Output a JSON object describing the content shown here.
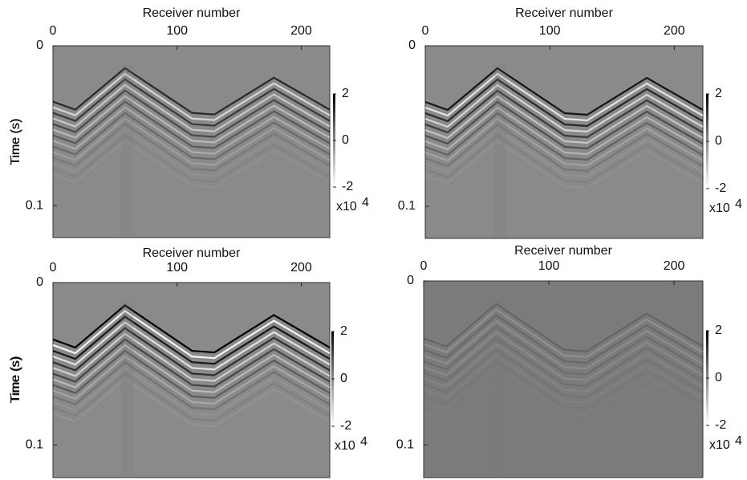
{
  "chart_data": [
    {
      "type": "image",
      "xlabel": "Receiver number",
      "ylabel": "Time (s)",
      "xlim": [
        0,
        223
      ],
      "xticks": [
        0,
        100,
        200
      ],
      "ylim": [
        0,
        0.12
      ],
      "yticks": [
        0,
        0.1
      ],
      "background": "#8a8a8a",
      "colorbar": {
        "clim": [
          -2,
          2
        ],
        "ticks": [
          2,
          0,
          -2
        ],
        "multiplier": "x10",
        "exponent": "4"
      }
    },
    {
      "type": "image",
      "xlabel": "Receiver number",
      "ylabel": "Time (s)",
      "xlim": [
        0,
        223
      ],
      "xticks": [
        0,
        100,
        200
      ],
      "ylim": [
        0,
        0.12
      ],
      "yticks": [
        0,
        0.1
      ],
      "background": "#8a8a8a",
      "colorbar": {
        "clim": [
          -2,
          2
        ],
        "ticks": [
          2,
          0,
          -2
        ],
        "multiplier": "x10",
        "exponent": "4"
      }
    },
    {
      "type": "image",
      "xlabel": "Receiver number",
      "ylabel": "Time (s)",
      "xlim": [
        0,
        223
      ],
      "xticks": [
        0,
        100,
        200
      ],
      "ylim": [
        0,
        0.12
      ],
      "yticks": [
        0,
        0.1
      ],
      "background": "#8a8a8a",
      "colorbar": {
        "clim": [
          -2,
          2
        ],
        "ticks": [
          2,
          0,
          -2
        ],
        "multiplier": "x10",
        "exponent": "4"
      }
    },
    {
      "type": "image",
      "xlabel": "Receiver number",
      "ylabel": "Time (s)",
      "xlim": [
        0,
        223
      ],
      "xticks": [
        0,
        100,
        200
      ],
      "ylim": [
        0,
        0.12
      ],
      "yticks": [
        0,
        0.1
      ],
      "background": "#7b7b7b",
      "colorbar": {
        "clim": [
          -2,
          2
        ],
        "ticks": [
          2,
          0,
          -2
        ],
        "multiplier": "x10",
        "exponent": "4"
      }
    }
  ]
}
